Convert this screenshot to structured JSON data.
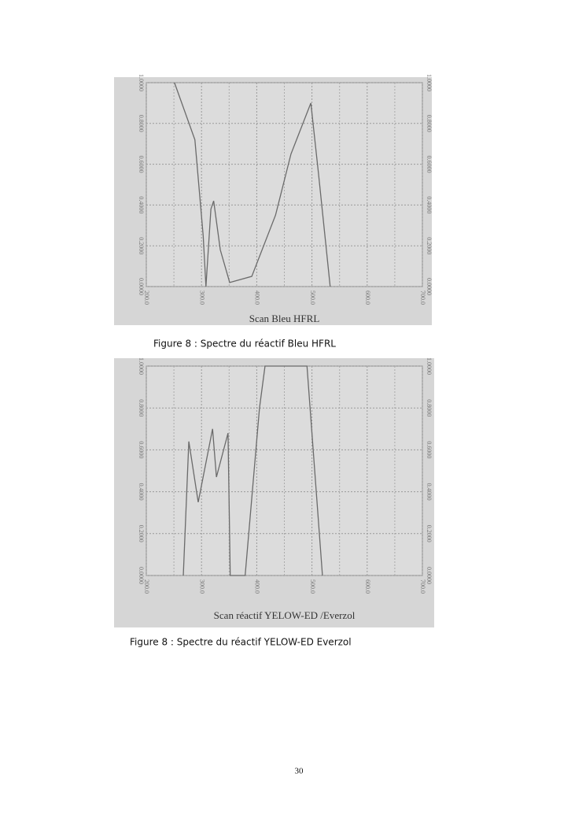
{
  "chart_data": [
    {
      "type": "line",
      "title": "Scan Bleu HFRL",
      "x": [
        251,
        288,
        303,
        308,
        317,
        322,
        334,
        351,
        391,
        434,
        462,
        498,
        512,
        533
      ],
      "series": [
        {
          "name": "Bleu HFRL",
          "color": "#6a6a6a",
          "values": [
            1.0,
            0.72,
            0.25,
            0.0,
            0.38,
            0.42,
            0.18,
            0.02,
            0.05,
            0.35,
            0.65,
            0.9,
            0.55,
            0.0
          ]
        }
      ],
      "xlim": [
        200,
        700
      ],
      "xticks": [
        {
          "value": 200,
          "label": "200.0"
        },
        {
          "value": 300,
          "label": "300.0"
        },
        {
          "value": 400,
          "label": "400.0"
        },
        {
          "value": 500,
          "label": "500.0"
        },
        {
          "value": 600,
          "label": "600.0"
        },
        {
          "value": 700,
          "label": "700.0"
        }
      ],
      "ylim": [
        0,
        1
      ],
      "yticks": [
        {
          "value": 0,
          "label": "0.0000"
        },
        {
          "value": 0.2,
          "label": "0.2000"
        },
        {
          "value": 0.4,
          "label": "0.4000"
        },
        {
          "value": 0.6,
          "label": "0.6000"
        },
        {
          "value": 0.8,
          "label": "0.8000"
        },
        {
          "value": 1,
          "label": "1.0000"
        }
      ],
      "grid": true
    },
    {
      "type": "line",
      "title": "Scan réactif YELOW-ED /Everzol",
      "x": [
        267,
        277,
        294,
        320,
        327,
        348,
        352,
        379,
        405,
        415,
        491,
        519
      ],
      "series": [
        {
          "name": "YELOW-ED Everzol",
          "color": "#6a6a6a",
          "values": [
            0.0,
            0.64,
            0.35,
            0.7,
            0.47,
            0.68,
            0.0,
            0.0,
            0.8,
            1.0,
            1.0,
            0.0
          ]
        }
      ],
      "xlim": [
        200,
        700
      ],
      "xticks": [
        {
          "value": 200,
          "label": "200.0"
        },
        {
          "value": 300,
          "label": "300.0"
        },
        {
          "value": 400,
          "label": "400.0"
        },
        {
          "value": 500,
          "label": "500.0"
        },
        {
          "value": 600,
          "label": "600.0"
        },
        {
          "value": 700,
          "label": "700.0"
        }
      ],
      "ylim": [
        0,
        1
      ],
      "yticks": [
        {
          "value": 0,
          "label": "0.0000"
        },
        {
          "value": 0.2,
          "label": "0.2000"
        },
        {
          "value": 0.4,
          "label": "0.4000"
        },
        {
          "value": 0.6,
          "label": "0.6000"
        },
        {
          "value": 0.8,
          "label": "0.8000"
        },
        {
          "value": 1,
          "label": "1.0000"
        }
      ],
      "grid": true
    }
  ],
  "captions": [
    "Figure 8 : Spectre du réactif Bleu HFRL",
    "Figure 8 : Spectre du réactif YELOW-ED Everzol"
  ],
  "page_number": "30"
}
